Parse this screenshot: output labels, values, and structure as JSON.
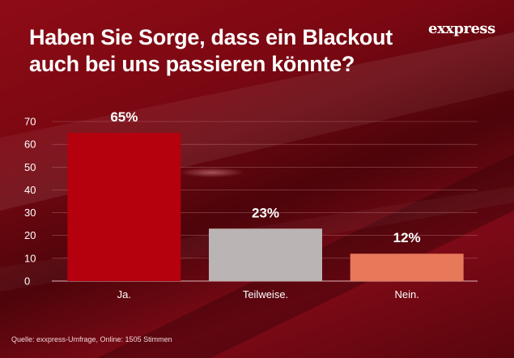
{
  "header": {
    "title": "Haben Sie Sorge, dass ein Blackout auch bei uns passieren könnte?",
    "logo": "exxpress"
  },
  "footer": {
    "source": "Quelle:  exxpress-Umfrage, Online: 1505  Stimmen"
  },
  "chart_data": {
    "type": "bar",
    "title": "Haben Sie Sorge, dass ein Blackout auch bei uns passieren könnte?",
    "categories": [
      "Ja.",
      "Teilweise.",
      "Nein."
    ],
    "values": [
      65,
      23,
      12
    ],
    "data_labels": [
      "65%",
      "23%",
      "12%"
    ],
    "bar_colors": [
      "#b5000e",
      "#bbb4b5",
      "#e7785a"
    ],
    "yticks": [
      0,
      10,
      20,
      30,
      40,
      50,
      60,
      70
    ],
    "ylim": [
      0,
      70
    ],
    "grid": true,
    "legend": "none",
    "xlabel": "",
    "ylabel": ""
  }
}
